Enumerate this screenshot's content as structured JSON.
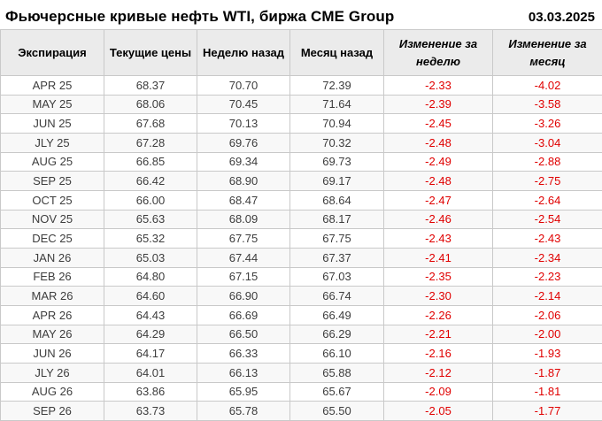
{
  "header": {
    "title": "Фьючерсные кривые нефть WTI, биржа CME Group",
    "date": "03.03.2025"
  },
  "table": {
    "columns": [
      {
        "key": "expiration",
        "label": "Экспирация",
        "italic": false
      },
      {
        "key": "current",
        "label": "Текущие цены",
        "italic": false
      },
      {
        "key": "week-ago",
        "label": "Неделю назад",
        "italic": false
      },
      {
        "key": "month-ago",
        "label": "Месяц назад",
        "italic": false
      },
      {
        "key": "change-week",
        "label": "Изменение за неделю",
        "italic": true
      },
      {
        "key": "change-month",
        "label": "Изменение за месяц",
        "italic": true
      }
    ],
    "rows": [
      [
        "APR 25",
        "68.37",
        "70.70",
        "72.39",
        "-2.33",
        "-4.02"
      ],
      [
        "MAY 25",
        "68.06",
        "70.45",
        "71.64",
        "-2.39",
        "-3.58"
      ],
      [
        "JUN 25",
        "67.68",
        "70.13",
        "70.94",
        "-2.45",
        "-3.26"
      ],
      [
        "JLY 25",
        "67.28",
        "69.76",
        "70.32",
        "-2.48",
        "-3.04"
      ],
      [
        "AUG 25",
        "66.85",
        "69.34",
        "69.73",
        "-2.49",
        "-2.88"
      ],
      [
        "SEP 25",
        "66.42",
        "68.90",
        "69.17",
        "-2.48",
        "-2.75"
      ],
      [
        "OCT 25",
        "66.00",
        "68.47",
        "68.64",
        "-2.47",
        "-2.64"
      ],
      [
        "NOV 25",
        "65.63",
        "68.09",
        "68.17",
        "-2.46",
        "-2.54"
      ],
      [
        "DEC 25",
        "65.32",
        "67.75",
        "67.75",
        "-2.43",
        "-2.43"
      ],
      [
        "JAN 26",
        "65.03",
        "67.44",
        "67.37",
        "-2.41",
        "-2.34"
      ],
      [
        "FEB 26",
        "64.80",
        "67.15",
        "67.03",
        "-2.35",
        "-2.23"
      ],
      [
        "MAR 26",
        "64.60",
        "66.90",
        "66.74",
        "-2.30",
        "-2.14"
      ],
      [
        "APR 26",
        "64.43",
        "66.69",
        "66.49",
        "-2.26",
        "-2.06"
      ],
      [
        "MAY 26",
        "64.29",
        "66.50",
        "66.29",
        "-2.21",
        "-2.00"
      ],
      [
        "JUN 26",
        "64.17",
        "66.33",
        "66.10",
        "-2.16",
        "-1.93"
      ],
      [
        "JLY 26",
        "64.01",
        "66.13",
        "65.88",
        "-2.12",
        "-1.87"
      ],
      [
        "AUG 26",
        "63.86",
        "65.95",
        "65.67",
        "-2.09",
        "-1.81"
      ],
      [
        "SEP 26",
        "63.73",
        "65.78",
        "65.50",
        "-2.05",
        "-1.77"
      ]
    ]
  },
  "colors": {
    "negative_change": "#e00000",
    "header_background": "#ebebeb",
    "grid_border": "#c9c9c9",
    "body_text": "#3d3d3d"
  },
  "chart_data": {
    "type": "table",
    "title": "Фьючерсные кривые нефть WTI, биржа CME Group",
    "date_label": "03.03.2025",
    "columns": [
      "Экспирация",
      "Текущие цены",
      "Неделю назад",
      "Месяц назад",
      "Изменение за неделю",
      "Изменение за месяц"
    ],
    "rows": [
      [
        "APR 25",
        68.37,
        70.7,
        72.39,
        -2.33,
        -4.02
      ],
      [
        "MAY 25",
        68.06,
        70.45,
        71.64,
        -2.39,
        -3.58
      ],
      [
        "JUN 25",
        67.68,
        70.13,
        70.94,
        -2.45,
        -3.26
      ],
      [
        "JLY 25",
        67.28,
        69.76,
        70.32,
        -2.48,
        -3.04
      ],
      [
        "AUG 25",
        66.85,
        69.34,
        69.73,
        -2.49,
        -2.88
      ],
      [
        "SEP 25",
        66.42,
        68.9,
        69.17,
        -2.48,
        -2.75
      ],
      [
        "OCT 25",
        66.0,
        68.47,
        68.64,
        -2.47,
        -2.64
      ],
      [
        "NOV 25",
        65.63,
        68.09,
        68.17,
        -2.46,
        -2.54
      ],
      [
        "DEC 25",
        65.32,
        67.75,
        67.75,
        -2.43,
        -2.43
      ],
      [
        "JAN 26",
        65.03,
        67.44,
        67.37,
        -2.41,
        -2.34
      ],
      [
        "FEB 26",
        64.8,
        67.15,
        67.03,
        -2.35,
        -2.23
      ],
      [
        "MAR 26",
        64.6,
        66.9,
        66.74,
        -2.3,
        -2.14
      ],
      [
        "APR 26",
        64.43,
        66.69,
        66.49,
        -2.26,
        -2.06
      ],
      [
        "MAY 26",
        64.29,
        66.5,
        66.29,
        -2.21,
        -2.0
      ],
      [
        "JUN 26",
        64.17,
        66.33,
        66.1,
        -2.16,
        -1.93
      ],
      [
        "JLY 26",
        64.01,
        66.13,
        65.88,
        -2.12,
        -1.87
      ],
      [
        "AUG 26",
        63.86,
        65.95,
        65.67,
        -2.09,
        -1.81
      ],
      [
        "SEP 26",
        63.73,
        65.78,
        65.5,
        -2.05,
        -1.77
      ]
    ]
  }
}
